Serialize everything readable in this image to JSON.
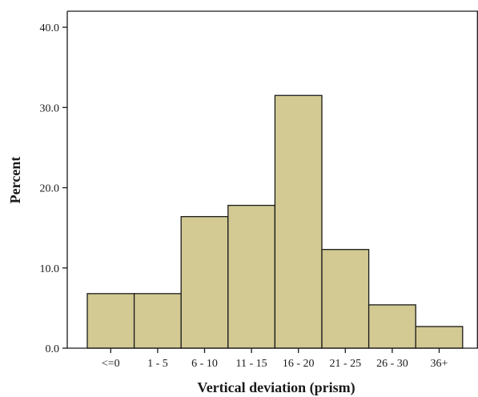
{
  "chart_data": {
    "type": "bar",
    "categories": [
      "<=0",
      "1 - 5",
      "6 - 10",
      "11 - 15",
      "16 - 20",
      "21 - 25",
      "26 - 30",
      "36+"
    ],
    "values": [
      6.8,
      6.8,
      16.4,
      17.8,
      31.5,
      12.3,
      5.4,
      2.7
    ],
    "yticks": [
      "0.0",
      "10.0",
      "20.0",
      "30.0",
      "40.0"
    ],
    "ylim": [
      0,
      42
    ],
    "xlabel": "Vertical deviation (prism)",
    "ylabel": "Percent",
    "bar_color": "#d2c993",
    "grid": false
  }
}
